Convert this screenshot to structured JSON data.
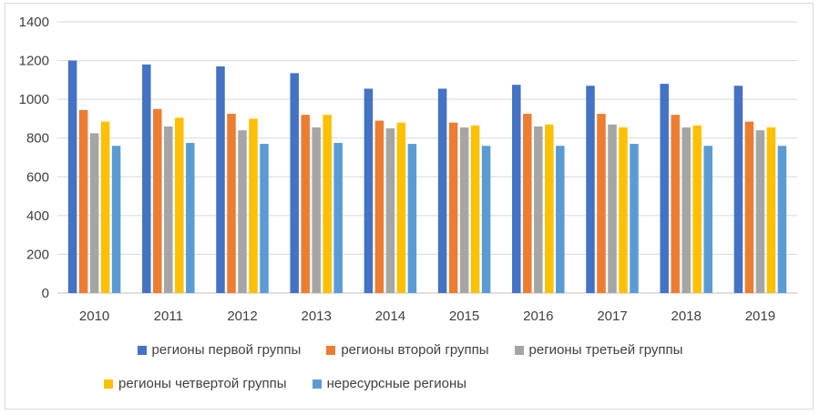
{
  "chart_data": {
    "type": "bar",
    "categories": [
      "2010",
      "2011",
      "2012",
      "2013",
      "2014",
      "2015",
      "2016",
      "2017",
      "2018",
      "2019"
    ],
    "series": [
      {
        "name": "регионы первой группы",
        "color": "#4472c4",
        "values": [
          1200,
          1180,
          1170,
          1135,
          1055,
          1055,
          1075,
          1070,
          1080,
          1070
        ]
      },
      {
        "name": "регионы второй группы",
        "color": "#ed7d31",
        "values": [
          945,
          950,
          925,
          920,
          890,
          880,
          925,
          925,
          920,
          885
        ]
      },
      {
        "name": "регионы третьей группы",
        "color": "#a5a5a5",
        "values": [
          825,
          860,
          840,
          855,
          850,
          855,
          860,
          870,
          855,
          840
        ]
      },
      {
        "name": "регионы четвертой группы",
        "color": "#ffc000",
        "values": [
          885,
          905,
          900,
          920,
          880,
          865,
          870,
          855,
          865,
          855
        ]
      },
      {
        "name": "нересурсные регионы",
        "color": "#5b9bd5",
        "values": [
          760,
          775,
          770,
          775,
          770,
          760,
          760,
          770,
          760,
          760
        ]
      }
    ],
    "title": "",
    "xlabel": "",
    "ylabel": "",
    "ylim": [
      0,
      1400
    ],
    "yticks": [
      "0",
      "200",
      "400",
      "600",
      "800",
      "1000",
      "1200",
      "1400"
    ],
    "grid": true,
    "legend": "bottom"
  }
}
